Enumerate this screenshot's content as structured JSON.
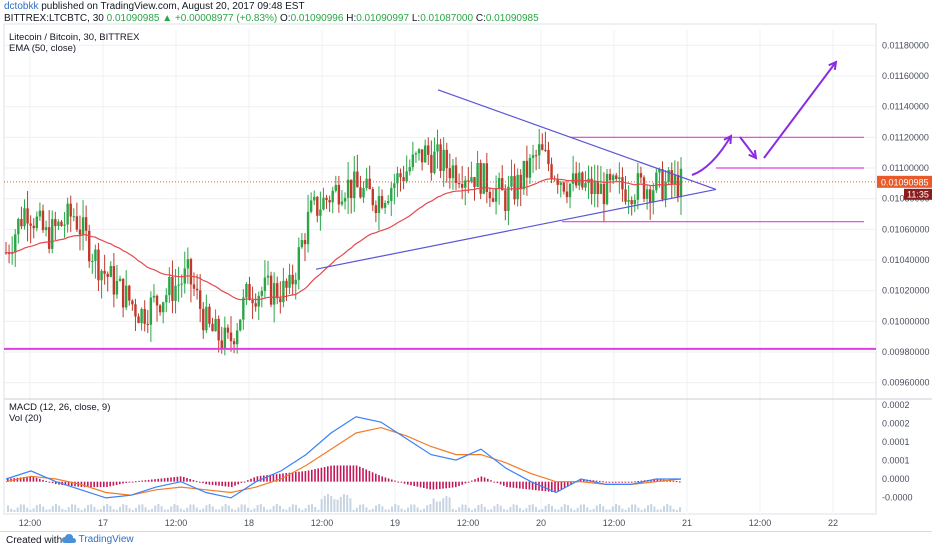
{
  "header": {
    "user": "dctobkk",
    "published": "published on TradingView.com, August 20, 2017 09:48 EST",
    "symbol": "BITTREX:LTCBTC, 30",
    "last": "0.01090985",
    "change": "+0.00008977 (+0.83%)",
    "ohlc": {
      "o_label": "O:",
      "o": "0.01090996",
      "h_label": "H:",
      "h": "0.01090997",
      "l_label": "L:",
      "l": "0.01087000",
      "c_label": "C:",
      "c": "0.01090985"
    }
  },
  "footer": {
    "made": "Created with",
    "brand": "TradingView"
  },
  "colors": {
    "up": "#2aa647",
    "down": "#c0392b",
    "ema": "#e5484d",
    "triangle": "#5b55d6",
    "level": "#e040e0",
    "arrow": "#8a2be2",
    "macd": "#3b82f6",
    "signal": "#f07c2a",
    "hist": "#c2185b",
    "grid": "#eef0f3",
    "price_tag": "#e85a2a"
  },
  "chart_data": [
    {
      "type": "candlestick",
      "title": "Litecoin / Bitcoin, 30, BITTREX",
      "indicator": "EMA (50, close)",
      "x_ticks": [
        "12:00",
        "17",
        "12:00",
        "18",
        "12:00",
        "19",
        "12:00",
        "20",
        "12:00",
        "21",
        "12:00",
        "22"
      ],
      "y_ticks": [
        "0.01180000",
        "0.01160000",
        "0.01140000",
        "0.01120000",
        "0.01100000",
        "0.01080000",
        "0.01060000",
        "0.01040000",
        "0.01020000",
        "0.01000000",
        "0.00980000",
        "0.00960000"
      ],
      "ylim": [
        0.0095,
        0.0119
      ],
      "last_price_label": "0.01090985",
      "countdown_label": "11:35",
      "keypoints": [
        {
          "t": 0,
          "p": 0.01045
        },
        {
          "t": 0.03,
          "p": 0.01075
        },
        {
          "t": 0.06,
          "p": 0.01055
        },
        {
          "t": 0.1,
          "p": 0.0107
        },
        {
          "t": 0.14,
          "p": 0.01035
        },
        {
          "t": 0.2,
          "p": 0.01005
        },
        {
          "t": 0.27,
          "p": 0.0103
        },
        {
          "t": 0.3,
          "p": 0.00995
        },
        {
          "t": 0.33,
          "p": 0.00985
        },
        {
          "t": 0.36,
          "p": 0.0102
        },
        {
          "t": 0.42,
          "p": 0.0102
        },
        {
          "t": 0.45,
          "p": 0.0107
        },
        {
          "t": 0.5,
          "p": 0.0109
        },
        {
          "t": 0.55,
          "p": 0.0108
        },
        {
          "t": 0.62,
          "p": 0.0111
        },
        {
          "t": 0.66,
          "p": 0.011
        },
        {
          "t": 0.7,
          "p": 0.01095
        },
        {
          "t": 0.74,
          "p": 0.0108
        },
        {
          "t": 0.76,
          "p": 0.0109
        },
        {
          "t": 0.79,
          "p": 0.0111
        },
        {
          "t": 0.83,
          "p": 0.0109
        },
        {
          "t": 0.88,
          "p": 0.01085
        },
        {
          "t": 0.94,
          "p": 0.01088
        },
        {
          "t": 1,
          "p": 0.0109
        }
      ],
      "trendlines": [
        {
          "name": "triangle-upper",
          "from": {
            "x": "19 06:00",
            "p": 0.01151
          },
          "to": {
            "x": "20 20:00",
            "p": 0.01086
          }
        },
        {
          "name": "triangle-lower",
          "from": {
            "x": "18 12:00",
            "p": 0.01033
          },
          "to": {
            "x": "20 20:00",
            "p": 0.01086
          }
        }
      ],
      "levels": [
        0.0112,
        0.011,
        0.01065,
        0.00982
      ],
      "projection_arrows": 4
    },
    {
      "type": "line",
      "title": "MACD (12, 26, close, 9)",
      "secondary": "Vol (20)",
      "y_ticks": [
        "0.0002",
        "0.0002",
        "0.0001",
        "0.0001",
        "0.0000",
        "-0.0000"
      ],
      "series": [
        {
          "name": "MACD",
          "values": [
            1e-05,
            4e-05,
            0.0,
            -3e-05,
            -6e-05,
            -5e-05,
            -2e-05,
            0.0,
            -4e-05,
            -6e-05,
            0.0,
            4e-05,
            0.0001,
            0.00018,
            0.00024,
            0.00022,
            0.00016,
            0.0001,
            8e-05,
            0.00012,
            5e-05,
            0.0,
            -4e-05,
            1e-05,
            -1e-05,
            -1e-05,
            1e-05,
            1e-05
          ]
        },
        {
          "name": "Signal",
          "values": [
            0.0,
            2e-05,
            1e-05,
            -1e-05,
            -4e-05,
            -5e-05,
            -3e-05,
            -2e-05,
            -3e-05,
            -4e-05,
            -2e-05,
            1e-05,
            6e-05,
            0.00012,
            0.00018,
            0.0002,
            0.00017,
            0.00013,
            0.0001,
            0.0001,
            7e-05,
            3e-05,
            0.0,
            0.0,
            -1e-05,
            -1e-05,
            0.0,
            1e-05
          ]
        }
      ],
      "ylim": [
        -9e-05,
        0.00028
      ]
    }
  ]
}
